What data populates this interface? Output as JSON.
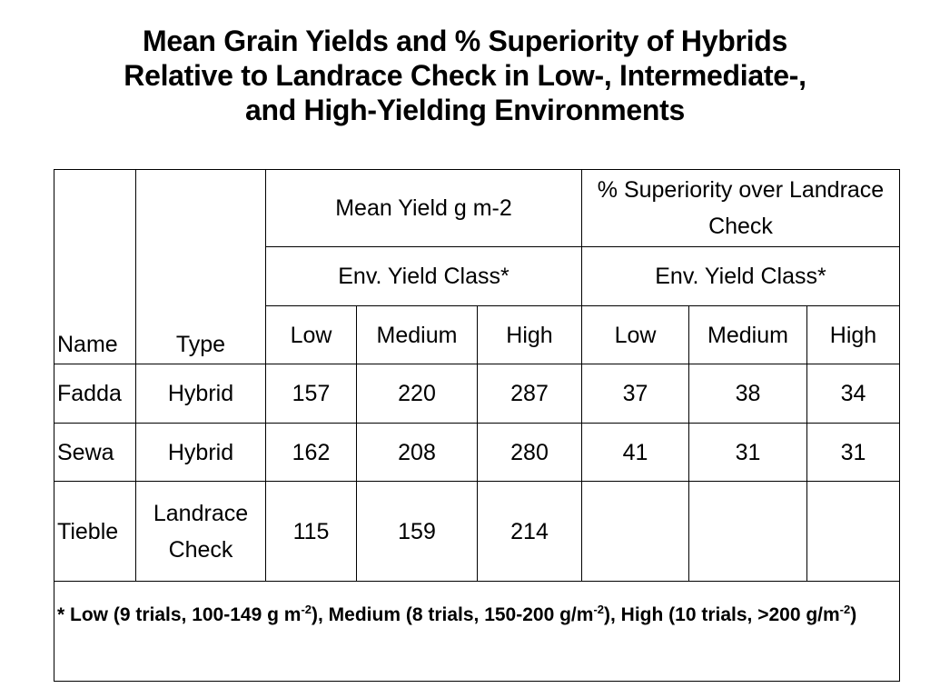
{
  "title": {
    "line1": "Mean Grain Yields and % Superiority of Hybrids",
    "line2": "Relative to Landrace Check in Low-, Intermediate-,",
    "line3": "and High-Yielding Environments"
  },
  "table": {
    "header": {
      "name": "Name",
      "type": "Type",
      "mean_yield": "Mean Yield g m-2",
      "superiority": "% Superiority over Landrace Check",
      "env_class_yield": "Env. Yield Class*",
      "env_class_superiority": "Env. Yield Class*",
      "levels": [
        "Low",
        "Medium",
        "High",
        "Low",
        "Medium",
        "High"
      ]
    },
    "rows": [
      {
        "name": "Fadda",
        "type": "Hybrid",
        "yield_low": "157",
        "yield_medium": "220",
        "yield_high": "287",
        "sup_low": "37",
        "sup_medium": "38",
        "sup_high": "34"
      },
      {
        "name": "Sewa",
        "type": "Hybrid",
        "yield_low": "162",
        "yield_medium": "208",
        "yield_high": "280",
        "sup_low": "41",
        "sup_medium": "31",
        "sup_high": "31"
      },
      {
        "name": "Tieble",
        "type": "Landrace Check",
        "yield_low": "115",
        "yield_medium": "159",
        "yield_high": "214",
        "sup_low": "",
        "sup_medium": "",
        "sup_high": ""
      }
    ],
    "footnote": {
      "part1": "* Low (9 trials, 100-149 g m",
      "exp1": "-2",
      "part2": "), Medium (8 trials, 150-200 g/m",
      "exp2": "-2",
      "part3": "), High (10 trials, >200 g/m",
      "exp3": "-2",
      "part4": ")"
    }
  }
}
